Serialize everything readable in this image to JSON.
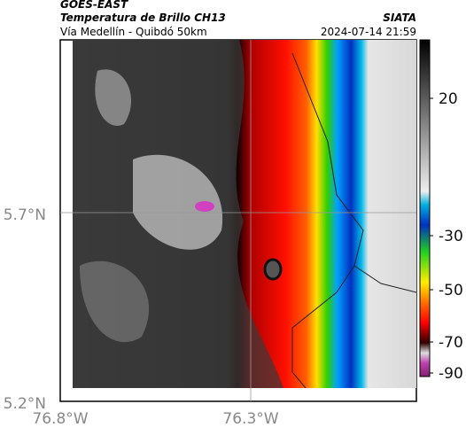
{
  "header": {
    "title": "GOES-EAST",
    "subtitle": "Temperatura de Brillo CH13",
    "source": "SIATA",
    "region": "Vía Medellín - Quibdó 50km",
    "timestamp": "2024-07-14 21:59"
  },
  "map": {
    "lat_ticks": [
      "5.7°N",
      "5.2°N"
    ],
    "lon_ticks": [
      "76.8°W",
      "76.3°W"
    ]
  },
  "colorbar": {
    "ticks": [
      "20",
      "-30",
      "-50",
      "-70",
      "-90"
    ]
  }
}
